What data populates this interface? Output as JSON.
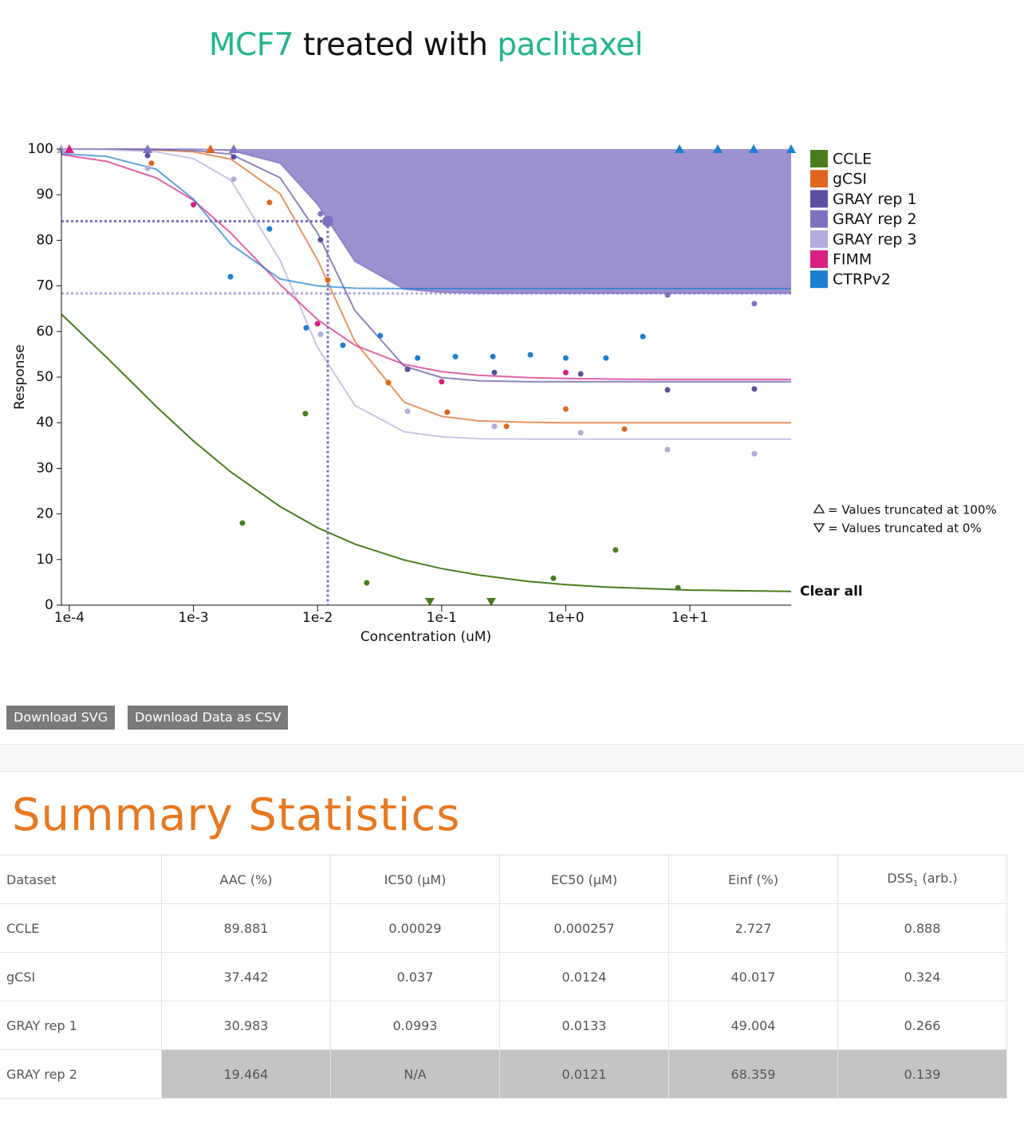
{
  "header": {
    "title": {
      "cell_line": "MCF7",
      "text": "treated with",
      "drug": "paclitaxel"
    }
  },
  "chart_data": {
    "type": "scatter",
    "x_label": "Concentration (uM)",
    "y_label": "Response",
    "log_x": true,
    "xlim": [
      8.63e-05,
      65.5
    ],
    "xticks": [
      {
        "value": 0.0001,
        "label": "1e-4"
      },
      {
        "value": 0.001,
        "label": "1e-3"
      },
      {
        "value": 0.01,
        "label": "1e-2"
      },
      {
        "value": 0.1,
        "label": "1e-1"
      },
      {
        "value": 1,
        "label": "1e+0"
      },
      {
        "value": 10,
        "label": "1e+1"
      }
    ],
    "ylim": [
      0,
      100
    ],
    "yticks": [
      0,
      10,
      20,
      30,
      40,
      50,
      60,
      70,
      80,
      90,
      100
    ],
    "highlight": "GRAY rep 2",
    "fit_x": [
      8.63e-05,
      0.0002,
      0.0005,
      0.001,
      0.002,
      0.005,
      0.01,
      0.02,
      0.05,
      0.1,
      0.2,
      0.5,
      1,
      2,
      5,
      10,
      20,
      65.5
    ],
    "series": [
      {
        "name": "CCLE",
        "color": "#4a7c1f",
        "x": [
          0.00248,
          0.00798,
          0.0249,
          0.0803,
          0.251,
          0.796,
          2.52,
          8.02
        ],
        "values": [
          18.0,
          42.0,
          4.9,
          0,
          0,
          5.9,
          12.1,
          3.8
        ],
        "fit_values": [
          63.8,
          54.3,
          43.6,
          36.0,
          29.2,
          21.6,
          17.0,
          13.4,
          9.9,
          8.0,
          6.6,
          5.2,
          4.5,
          4.0,
          3.6,
          3.3,
          3.2,
          3.0
        ]
      },
      {
        "name": "gCSI",
        "color": "#e0661f",
        "x": [
          0.000459,
          0.00137,
          0.0041,
          0.0121,
          0.0372,
          0.111,
          0.333,
          1.0,
          2.97
        ],
        "values": [
          96.9,
          100,
          88.3,
          71.3,
          48.8,
          42.3,
          39.2,
          43.0,
          38.6
        ],
        "fit_values": [
          100,
          100,
          99.8,
          99.4,
          97.8,
          90.2,
          75.7,
          57.8,
          44.5,
          41.4,
          40.4,
          40.1,
          40,
          40,
          40,
          40,
          40,
          40
        ]
      },
      {
        "name": "GRAY rep 1",
        "color": "#5b50a0",
        "x": [
          0.000427,
          0.00211,
          0.01057,
          0.0531,
          0.266,
          1.32,
          6.61,
          33.1
        ],
        "values": [
          98.6,
          98.3,
          80.1,
          51.7,
          51.0,
          50.7,
          47.2,
          47.4
        ],
        "fit_values": [
          100,
          100,
          99.9,
          99.7,
          98.9,
          93.7,
          81.6,
          64.6,
          52.4,
          49.9,
          49.2,
          49.0,
          49,
          49,
          49,
          49,
          49,
          49
        ]
      },
      {
        "name": "GRAY rep 2",
        "color": "#7e72c0",
        "x": [
          0.000427,
          0.00211,
          0.01057,
          6.61,
          33.1
        ],
        "values": [
          100,
          100,
          85.8,
          68.0,
          66.1
        ],
        "fit_values": [
          100,
          100,
          100,
          100,
          99.7,
          96.9,
          87.9,
          75.4,
          69.3,
          68.6,
          68.4,
          68.4,
          68.4,
          68.4,
          68.4,
          68.4,
          68.4,
          68.4
        ]
      },
      {
        "name": "GRAY rep 3",
        "color": "#b1acdc",
        "x": [
          8.63e-05,
          0.000427,
          0.00211,
          0.01057,
          0.0531,
          0.266,
          1.32,
          6.61,
          33.1
        ],
        "values": [
          100,
          95.8,
          93.4,
          59.4,
          42.5,
          39.2,
          37.8,
          34.1,
          33.2
        ],
        "fit_values": [
          100,
          99.9,
          99.4,
          97.9,
          93.2,
          75.6,
          56.5,
          43.8,
          38.0,
          36.9,
          36.5,
          36.4,
          36.4,
          36.4,
          36.4,
          36.4,
          36.4,
          36.4
        ]
      },
      {
        "name": "FIMM",
        "color": "#d81f82",
        "x": [
          0.0001,
          0.001,
          0.01,
          0.1,
          1.0
        ],
        "values": [
          100,
          87.8,
          61.7,
          49.0,
          51.0
        ],
        "fit_values": [
          98.8,
          97.3,
          93.7,
          88.8,
          81.6,
          70.3,
          62.6,
          57.0,
          52.8,
          51.2,
          50.4,
          49.9,
          49.7,
          49.6,
          49.5,
          49.5,
          49.5,
          49.5
        ]
      },
      {
        "name": "CTRPv2",
        "color": "#1c7fd0",
        "x": [
          0.00199,
          0.0041,
          0.0081,
          0.016,
          0.032,
          0.064,
          0.129,
          0.259,
          0.519,
          1.0,
          2.11,
          4.18,
          8.26,
          16.8,
          32.7,
          65.5
        ],
        "values": [
          72.0,
          82.5,
          60.8,
          57.0,
          59.1,
          54.2,
          54.5,
          54.5,
          54.9,
          54.2,
          54.2,
          58.9,
          100,
          100,
          100,
          100
        ],
        "fit_values": [
          99.0,
          98.4,
          95.6,
          89.0,
          79.1,
          71.5,
          70.0,
          69.5,
          69.4,
          69.4,
          69.4,
          69.4,
          69.4,
          69.4,
          69.4,
          69.4,
          69.4,
          69.4
        ]
      }
    ],
    "notes": [
      "= Values truncated at 100%",
      "= Values truncated at 0%"
    ],
    "clear_label": "Clear all"
  },
  "buttons": [
    "Download SVG",
    "Download Data as CSV"
  ],
  "summary": {
    "title": "Summary Statistics",
    "columns": [
      "Dataset",
      "AAC (%)",
      "IC50 (µM)",
      "EC50 (µM)",
      "Einf (%)",
      {
        "text": "DSS",
        "sub": "1",
        "rest": " (arb.)"
      }
    ],
    "rows": [
      [
        "CCLE",
        89.881,
        0.00029,
        0.000257,
        2.727,
        0.888
      ],
      [
        "gCSI",
        37.442,
        0.037,
        0.0124,
        40.017,
        0.324
      ],
      [
        "GRAY rep 1",
        30.983,
        0.0993,
        0.0133,
        49.004,
        0.266
      ],
      [
        "GRAY rep 2",
        19.464,
        "N/A",
        0.0121,
        68.359,
        0.139
      ]
    ]
  }
}
